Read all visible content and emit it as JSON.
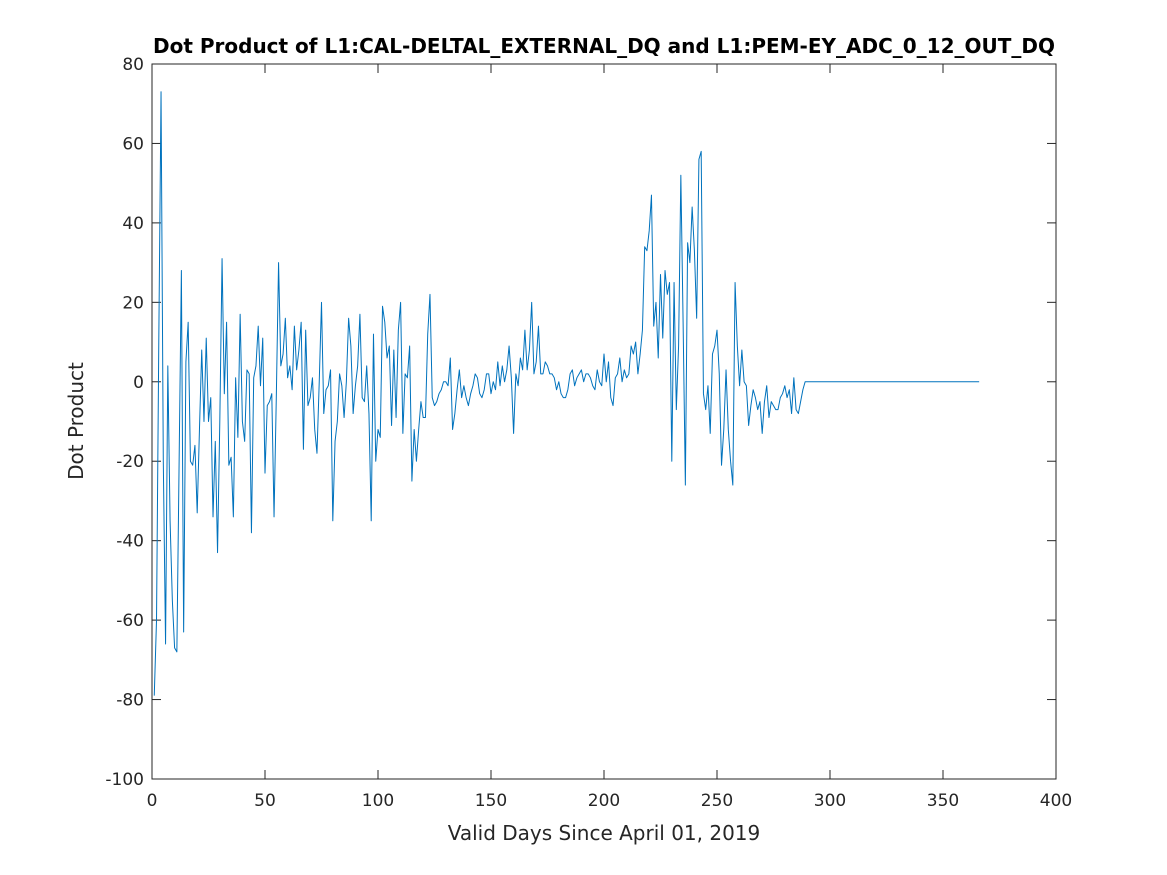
{
  "chart_data": {
    "type": "line",
    "title": "Dot Product of L1:CAL-DELTAL_EXTERNAL_DQ and L1:PEM-EY_ADC_0_12_OUT_DQ",
    "xlabel": "Valid Days Since April 01, 2019",
    "ylabel": "Dot Product",
    "xlim": [
      0,
      400
    ],
    "ylim": [
      -100,
      80
    ],
    "xticks": [
      0,
      50,
      100,
      150,
      200,
      250,
      300,
      350,
      400
    ],
    "yticks": [
      -100,
      -80,
      -60,
      -40,
      -20,
      0,
      20,
      40,
      60,
      80
    ],
    "grid": false,
    "line_color": "#0072bd",
    "series": [
      {
        "points": [
          [
            1,
            -79
          ],
          [
            2,
            -60
          ],
          [
            3,
            10
          ],
          [
            4,
            73
          ],
          [
            5,
            -20
          ],
          [
            6,
            -66
          ],
          [
            7,
            4
          ],
          [
            8,
            -35
          ],
          [
            9,
            -55
          ],
          [
            10,
            -67
          ],
          [
            11,
            -68
          ],
          [
            12,
            -20
          ],
          [
            13,
            28
          ],
          [
            14,
            -63
          ],
          [
            15,
            5
          ],
          [
            16,
            15
          ],
          [
            17,
            -20
          ],
          [
            18,
            -21
          ],
          [
            19,
            -16
          ],
          [
            20,
            -33
          ],
          [
            21,
            -12
          ],
          [
            22,
            8
          ],
          [
            23,
            -10
          ],
          [
            24,
            11
          ],
          [
            25,
            -10
          ],
          [
            26,
            -4
          ],
          [
            27,
            -34
          ],
          [
            28,
            -15
          ],
          [
            29,
            -43
          ],
          [
            30,
            -10
          ],
          [
            31,
            31
          ],
          [
            32,
            -3
          ],
          [
            33,
            15
          ],
          [
            34,
            -21
          ],
          [
            35,
            -19
          ],
          [
            36,
            -34
          ],
          [
            37,
            1
          ],
          [
            38,
            -14
          ],
          [
            39,
            17
          ],
          [
            40,
            -10
          ],
          [
            41,
            -15
          ],
          [
            42,
            3
          ],
          [
            43,
            2
          ],
          [
            44,
            -38
          ],
          [
            45,
            1
          ],
          [
            46,
            4
          ],
          [
            47,
            14
          ],
          [
            48,
            -1
          ],
          [
            49,
            11
          ],
          [
            50,
            -23
          ],
          [
            51,
            -6
          ],
          [
            52,
            -5
          ],
          [
            53,
            -3
          ],
          [
            54,
            -34
          ],
          [
            55,
            -4
          ],
          [
            56,
            30
          ],
          [
            57,
            4
          ],
          [
            58,
            7
          ],
          [
            59,
            16
          ],
          [
            60,
            1
          ],
          [
            61,
            4
          ],
          [
            62,
            -2
          ],
          [
            63,
            14
          ],
          [
            64,
            3
          ],
          [
            65,
            8
          ],
          [
            66,
            15
          ],
          [
            67,
            -17
          ],
          [
            68,
            13
          ],
          [
            69,
            -6
          ],
          [
            70,
            -4
          ],
          [
            71,
            1
          ],
          [
            72,
            -12
          ],
          [
            73,
            -18
          ],
          [
            74,
            0
          ],
          [
            75,
            20
          ],
          [
            76,
            -8
          ],
          [
            77,
            -2
          ],
          [
            78,
            -1
          ],
          [
            79,
            3
          ],
          [
            80,
            -35
          ],
          [
            81,
            -15
          ],
          [
            82,
            -10
          ],
          [
            83,
            2
          ],
          [
            84,
            -1
          ],
          [
            85,
            -9
          ],
          [
            86,
            0
          ],
          [
            87,
            16
          ],
          [
            88,
            9
          ],
          [
            89,
            -8
          ],
          [
            90,
            -1
          ],
          [
            91,
            4
          ],
          [
            92,
            17
          ],
          [
            93,
            -4
          ],
          [
            94,
            -5
          ],
          [
            95,
            4
          ],
          [
            96,
            -8
          ],
          [
            97,
            -35
          ],
          [
            98,
            12
          ],
          [
            99,
            -20
          ],
          [
            100,
            -12
          ],
          [
            101,
            -14
          ],
          [
            102,
            19
          ],
          [
            103,
            15
          ],
          [
            104,
            6
          ],
          [
            105,
            9
          ],
          [
            106,
            -11
          ],
          [
            107,
            8
          ],
          [
            108,
            -9
          ],
          [
            109,
            13
          ],
          [
            110,
            20
          ],
          [
            111,
            -13
          ],
          [
            112,
            2
          ],
          [
            113,
            1
          ],
          [
            114,
            9
          ],
          [
            115,
            -25
          ],
          [
            116,
            -12
          ],
          [
            117,
            -20
          ],
          [
            118,
            -12
          ],
          [
            119,
            -5
          ],
          [
            120,
            -9
          ],
          [
            121,
            -9
          ],
          [
            122,
            12
          ],
          [
            123,
            22
          ],
          [
            124,
            -4
          ],
          [
            125,
            -6
          ],
          [
            126,
            -5
          ],
          [
            127,
            -3
          ],
          [
            128,
            -2
          ],
          [
            129,
            0
          ],
          [
            130,
            0
          ],
          [
            131,
            -1
          ],
          [
            132,
            6
          ],
          [
            133,
            -12
          ],
          [
            134,
            -8
          ],
          [
            135,
            -2
          ],
          [
            136,
            3
          ],
          [
            137,
            -4
          ],
          [
            138,
            -1
          ],
          [
            139,
            -4
          ],
          [
            140,
            -6
          ],
          [
            141,
            -3
          ],
          [
            142,
            -1
          ],
          [
            143,
            2
          ],
          [
            144,
            1
          ],
          [
            145,
            -3
          ],
          [
            146,
            -4
          ],
          [
            147,
            -2
          ],
          [
            148,
            2
          ],
          [
            149,
            2
          ],
          [
            150,
            -3
          ],
          [
            151,
            0
          ],
          [
            152,
            -2
          ],
          [
            153,
            5
          ],
          [
            154,
            -1
          ],
          [
            155,
            4
          ],
          [
            156,
            0
          ],
          [
            157,
            3
          ],
          [
            158,
            9
          ],
          [
            159,
            1
          ],
          [
            160,
            -13
          ],
          [
            161,
            2
          ],
          [
            162,
            -1
          ],
          [
            163,
            6
          ],
          [
            164,
            3
          ],
          [
            165,
            13
          ],
          [
            166,
            3
          ],
          [
            167,
            8
          ],
          [
            168,
            20
          ],
          [
            169,
            2
          ],
          [
            170,
            5
          ],
          [
            171,
            14
          ],
          [
            172,
            2
          ],
          [
            173,
            2
          ],
          [
            174,
            5
          ],
          [
            175,
            4
          ],
          [
            176,
            2
          ],
          [
            177,
            2
          ],
          [
            178,
            1
          ],
          [
            179,
            -2
          ],
          [
            180,
            0
          ],
          [
            181,
            -3
          ],
          [
            182,
            -4
          ],
          [
            183,
            -4
          ],
          [
            184,
            -2
          ],
          [
            185,
            2
          ],
          [
            186,
            3
          ],
          [
            187,
            -1
          ],
          [
            188,
            1
          ],
          [
            189,
            2
          ],
          [
            190,
            3
          ],
          [
            191,
            0
          ],
          [
            192,
            2
          ],
          [
            193,
            2
          ],
          [
            194,
            1
          ],
          [
            195,
            -1
          ],
          [
            196,
            -2
          ],
          [
            197,
            3
          ],
          [
            198,
            0
          ],
          [
            199,
            -1
          ],
          [
            200,
            7
          ],
          [
            201,
            0
          ],
          [
            202,
            5
          ],
          [
            203,
            -4
          ],
          [
            204,
            -6
          ],
          [
            205,
            1
          ],
          [
            206,
            2
          ],
          [
            207,
            6
          ],
          [
            208,
            0
          ],
          [
            209,
            3
          ],
          [
            210,
            1
          ],
          [
            211,
            2
          ],
          [
            212,
            9
          ],
          [
            213,
            7
          ],
          [
            214,
            10
          ],
          [
            215,
            2
          ],
          [
            216,
            7
          ],
          [
            217,
            13
          ],
          [
            218,
            34
          ],
          [
            219,
            33
          ],
          [
            220,
            38
          ],
          [
            221,
            47
          ],
          [
            222,
            14
          ],
          [
            223,
            20
          ],
          [
            224,
            6
          ],
          [
            225,
            27
          ],
          [
            226,
            11
          ],
          [
            227,
            28
          ],
          [
            228,
            22
          ],
          [
            229,
            25
          ],
          [
            230,
            -20
          ],
          [
            231,
            25
          ],
          [
            232,
            -7
          ],
          [
            233,
            9
          ],
          [
            234,
            52
          ],
          [
            235,
            15
          ],
          [
            236,
            -26
          ],
          [
            237,
            35
          ],
          [
            238,
            30
          ],
          [
            239,
            44
          ],
          [
            240,
            33
          ],
          [
            241,
            16
          ],
          [
            242,
            56
          ],
          [
            243,
            58
          ],
          [
            244,
            -3
          ],
          [
            245,
            -7
          ],
          [
            246,
            -1
          ],
          [
            247,
            -13
          ],
          [
            248,
            7
          ],
          [
            249,
            9
          ],
          [
            250,
            13
          ],
          [
            251,
            2
          ],
          [
            252,
            -21
          ],
          [
            253,
            -12
          ],
          [
            254,
            3
          ],
          [
            255,
            -12
          ],
          [
            256,
            -20
          ],
          [
            257,
            -26
          ],
          [
            258,
            25
          ],
          [
            259,
            9
          ],
          [
            260,
            -1
          ],
          [
            261,
            8
          ],
          [
            262,
            0
          ],
          [
            263,
            -1
          ],
          [
            264,
            -11
          ],
          [
            265,
            -6
          ],
          [
            266,
            -2
          ],
          [
            267,
            -4
          ],
          [
            268,
            -7
          ],
          [
            269,
            -5
          ],
          [
            270,
            -13
          ],
          [
            271,
            -5
          ],
          [
            272,
            -1
          ],
          [
            273,
            -9
          ],
          [
            274,
            -5
          ],
          [
            275,
            -6
          ],
          [
            276,
            -7
          ],
          [
            277,
            -7
          ],
          [
            278,
            -4
          ],
          [
            279,
            -3
          ],
          [
            280,
            -1
          ],
          [
            281,
            -4
          ],
          [
            282,
            -2
          ],
          [
            283,
            -8
          ],
          [
            284,
            1
          ],
          [
            285,
            -7
          ],
          [
            286,
            -8
          ],
          [
            287,
            -5
          ],
          [
            288,
            -2
          ],
          [
            289,
            0
          ],
          [
            290,
            0
          ],
          [
            300,
            0
          ],
          [
            320,
            0
          ],
          [
            340,
            0
          ],
          [
            360,
            0
          ],
          [
            366,
            0
          ]
        ]
      }
    ]
  }
}
